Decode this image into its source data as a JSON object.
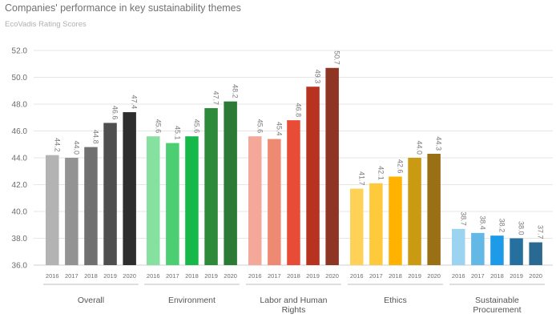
{
  "title": "Companies' performance in key sustainability themes",
  "subtitle": "EcoVadis Rating Scores",
  "chart_data": {
    "type": "bar",
    "title": "Companies' performance in key sustainability themes",
    "subtitle": "EcoVadis Rating Scores",
    "xlabel": "",
    "ylabel": "",
    "ylim": [
      36.0,
      52.0
    ],
    "yticks": [
      "36.0",
      "38.0",
      "40.0",
      "42.0",
      "44.0",
      "46.0",
      "48.0",
      "50.0",
      "52.0"
    ],
    "grid": true,
    "legend": "none",
    "years": [
      "2016",
      "2017",
      "2018",
      "2019",
      "2020"
    ],
    "groups": [
      {
        "name": "Overall",
        "name_lines": [
          "Overall"
        ],
        "values": [
          44.2,
          44.0,
          44.8,
          46.6,
          47.4
        ],
        "labels": [
          "44.2",
          "44.0",
          "44.8",
          "46.6",
          "47.4"
        ],
        "colors": [
          "#b3b3b3",
          "#939393",
          "#707070",
          "#4f4f4f",
          "#2e2e2e"
        ]
      },
      {
        "name": "Environment",
        "name_lines": [
          "Environment"
        ],
        "values": [
          45.6,
          45.1,
          45.6,
          47.7,
          48.2
        ],
        "labels": [
          "45.6",
          "45.1",
          "45.6",
          "47.7",
          "48.2"
        ],
        "colors": [
          "#86e0a0",
          "#4ccf72",
          "#16b84a",
          "#2d8a3a",
          "#2b7a35"
        ]
      },
      {
        "name": "Labor and Human Rights",
        "name_lines": [
          "Labor and Human",
          "Rights"
        ],
        "values": [
          45.6,
          45.4,
          46.8,
          49.3,
          50.7
        ],
        "labels": [
          "45.6",
          "45.4",
          "46.8",
          "49.3",
          "50.7"
        ],
        "colors": [
          "#f4a89a",
          "#ef8a72",
          "#e84c36",
          "#b83220",
          "#8e3524"
        ]
      },
      {
        "name": "Ethics",
        "name_lines": [
          "Ethics"
        ],
        "values": [
          41.7,
          42.1,
          42.6,
          44.0,
          44.3
        ],
        "labels": [
          "41.7",
          "42.1",
          "42.6",
          "44.0",
          "44.3"
        ],
        "colors": [
          "#ffd257",
          "#ffc93c",
          "#ffb300",
          "#c99a12",
          "#9a7016"
        ]
      },
      {
        "name": "Sustainable Procurement",
        "name_lines": [
          "Sustainable",
          "Procurement"
        ],
        "values": [
          38.7,
          38.4,
          38.2,
          38.0,
          37.7
        ],
        "labels": [
          "38.7",
          "38.4",
          "38.2",
          "38.0",
          "37.7"
        ],
        "colors": [
          "#9cd3f0",
          "#63b8e6",
          "#1d9be8",
          "#25709f",
          "#2a6a92"
        ]
      }
    ]
  }
}
